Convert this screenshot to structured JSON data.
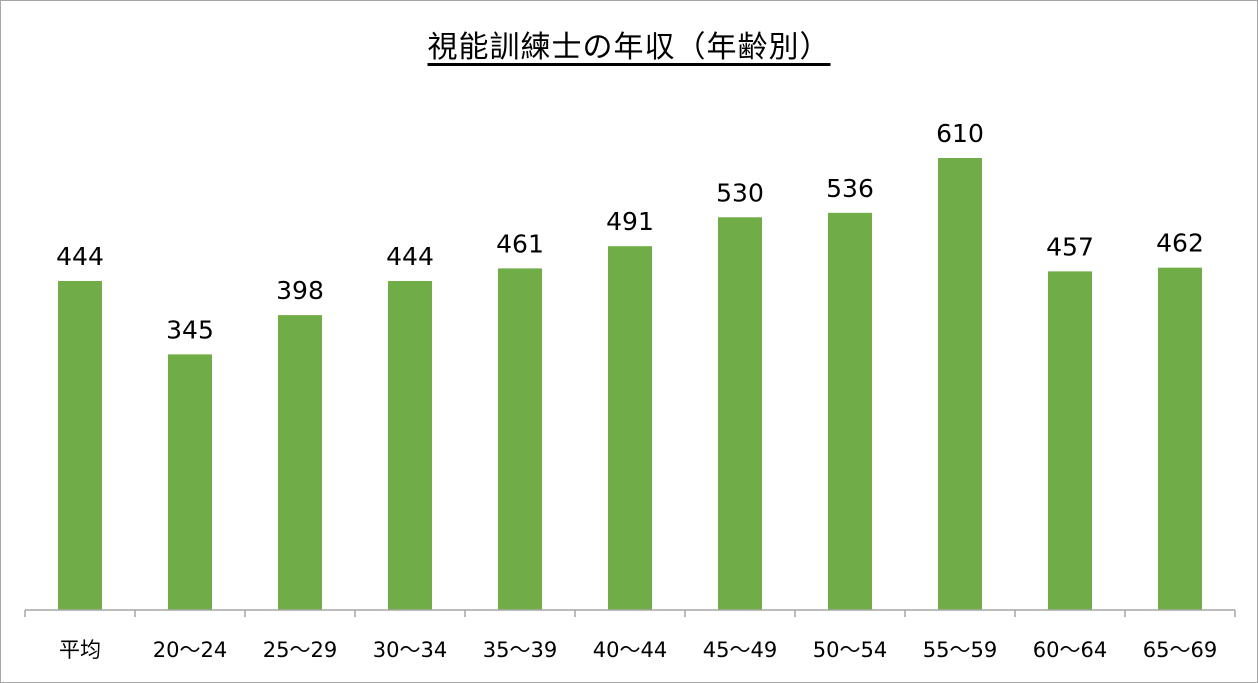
{
  "chart_data": {
    "type": "bar",
    "title": "視能訓練士の年収（年齢別）",
    "xlabel": "",
    "ylabel": "",
    "categories": [
      "平均",
      "20〜24",
      "25〜29",
      "30〜34",
      "35〜39",
      "40〜44",
      "45〜49",
      "50〜54",
      "55〜59",
      "60〜64",
      "65〜69"
    ],
    "values": [
      444,
      345,
      398,
      444,
      461,
      491,
      530,
      536,
      610,
      457,
      462
    ],
    "ylim": [
      0,
      610
    ],
    "grid": false,
    "legend": "none",
    "colors": {
      "bar": "#70ad47",
      "axis": "#a6a6a6"
    }
  }
}
